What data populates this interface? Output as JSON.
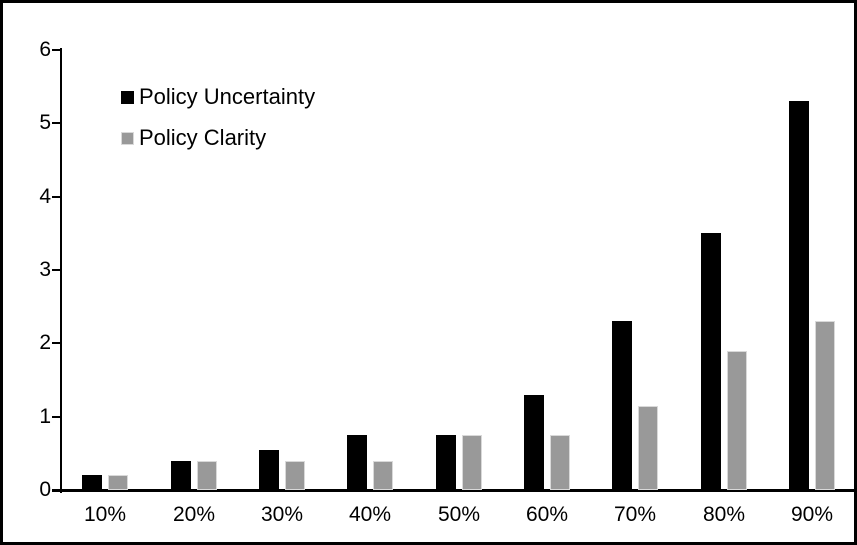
{
  "chart_data": {
    "type": "bar",
    "title": "",
    "xlabel": "",
    "ylabel": "",
    "categories": [
      "10%",
      "20%",
      "30%",
      "40%",
      "50%",
      "60%",
      "70%",
      "80%",
      "90%"
    ],
    "series": [
      {
        "name": "Policy Uncertainty",
        "color": "#000000",
        "values": [
          0.2,
          0.4,
          0.55,
          0.75,
          0.75,
          1.3,
          2.3,
          3.5,
          5.3
        ]
      },
      {
        "name": "Policy Clarity",
        "color": "#999999",
        "values": [
          0.2,
          0.4,
          0.4,
          0.4,
          0.75,
          0.75,
          1.15,
          1.9,
          2.3
        ]
      }
    ],
    "ylim": [
      0,
      6
    ],
    "yticks": [
      "0",
      "1",
      "2",
      "3",
      "4",
      "5",
      "6"
    ],
    "grid": false,
    "legend_position": "top-left",
    "colors": {
      "axis": "#000000",
      "frame_border": "#000000",
      "background": "#ffffff",
      "series1": "#000000",
      "series2": "#999999",
      "series2_edge": "#d9d9d9"
    }
  }
}
